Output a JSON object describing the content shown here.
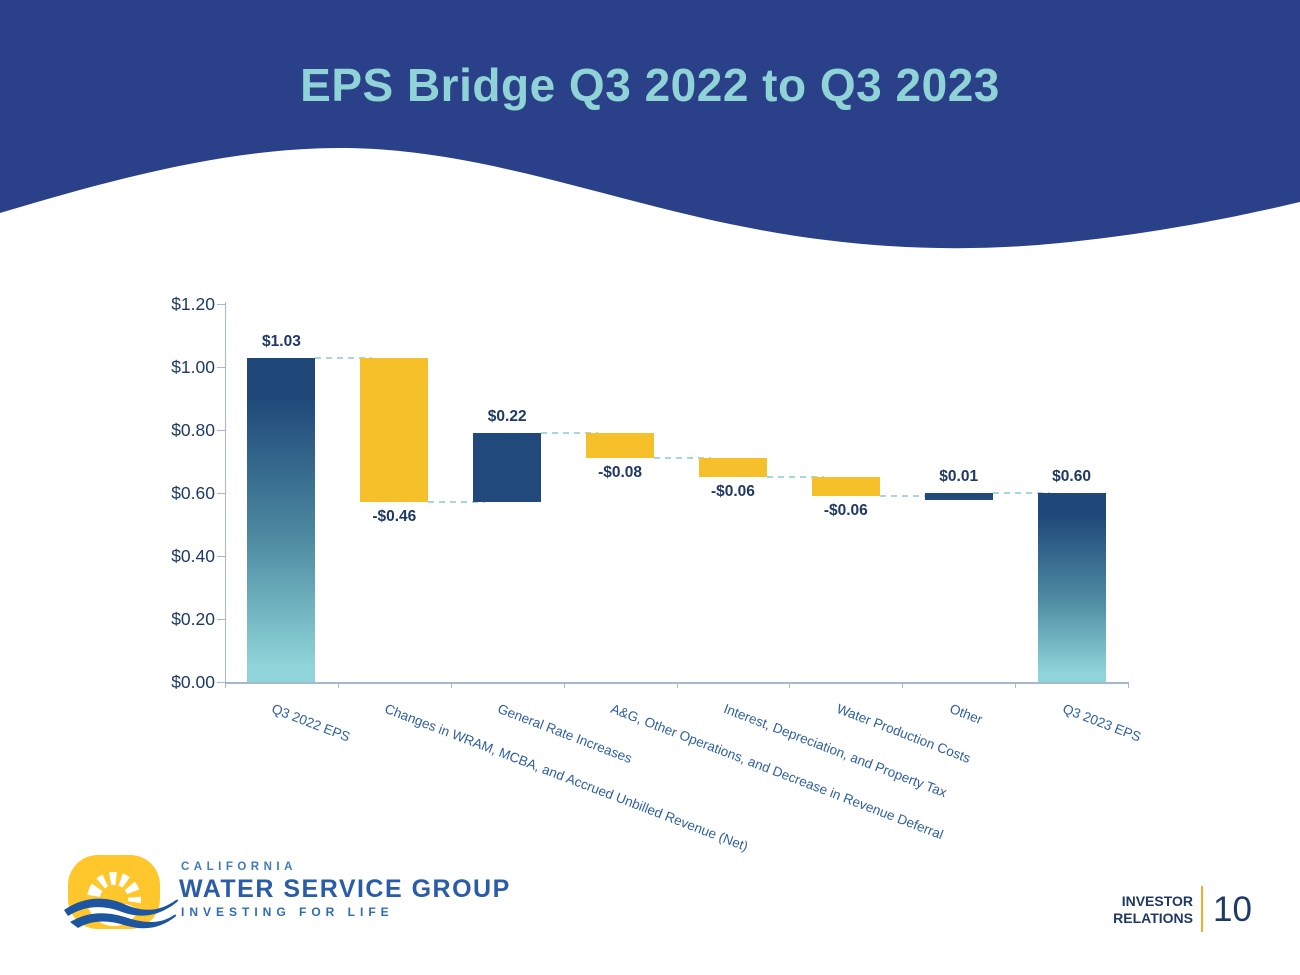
{
  "header": {
    "title": "EPS Bridge Q3 2022 to Q3 2023"
  },
  "chart_data": {
    "type": "bar",
    "subtype": "waterfall",
    "title": "EPS Bridge Q3 2022 to Q3 2023",
    "categories": [
      "Q3 2022 EPS",
      "Changes in WRAM, MCBA, and Accrued Unbilled Revenue (Net)",
      "General Rate Increases",
      "A&G, Other Operations, and Decrease in Revenue Deferral",
      "Interest, Depreciation, and Property Tax",
      "Water Production Costs",
      "Other",
      "Q3 2023 EPS"
    ],
    "values": [
      1.03,
      -0.46,
      0.22,
      -0.08,
      -0.06,
      -0.06,
      0.01,
      0.6
    ],
    "value_labels": [
      "$1.03",
      "-$0.46",
      "$0.22",
      "-$0.08",
      "-$0.06",
      "-$0.06",
      "$0.01",
      "$0.60"
    ],
    "bar_roles": [
      "total",
      "decrease",
      "increase",
      "decrease",
      "decrease",
      "decrease",
      "increase",
      "total"
    ],
    "cumulative_levels": [
      1.03,
      0.57,
      0.79,
      0.71,
      0.65,
      0.59,
      0.6,
      0.6
    ],
    "xlabel": "",
    "ylabel": "",
    "ylim": [
      0,
      1.2
    ],
    "grid": false,
    "legend": false,
    "y_axis_ticks": [
      {
        "label": "$0.00",
        "value": 0.0
      },
      {
        "label": "$0.20",
        "value": 0.2
      },
      {
        "label": "$0.40",
        "value": 0.4
      },
      {
        "label": "$0.60",
        "value": 0.6
      },
      {
        "label": "$0.80",
        "value": 0.8
      },
      {
        "label": "$1.00",
        "value": 1.0
      },
      {
        "label": "$1.20",
        "value": 1.2
      }
    ],
    "colors": {
      "total_bar_gradient_top": "#1F4879",
      "total_bar_gradient_mid": "#4C89A0",
      "total_bar_gradient_bottom": "#8ED4D8",
      "increase_bar": "#21497C",
      "decrease_bar": "#F5C02A",
      "connector": "#A5D8DE",
      "value_label": "#1F3864",
      "category_label": "#2E5F9E",
      "axis": "#A6B8CC",
      "axis_label": "#1E3A66"
    }
  },
  "footer": {
    "logo": {
      "line1": "CALIFORNIA",
      "line2": "WATER SERVICE GROUP",
      "line3": "INVESTING FOR LIFE"
    },
    "investor_relations": {
      "line1": "INVESTOR",
      "line2": "RELATIONS"
    },
    "page_number": "10"
  },
  "theme": {
    "header_bg": "#2A4189",
    "title_color": "#8FD3D7",
    "background": "#FFFFFF",
    "divider_gold": "#EFAF2C",
    "logo_sun_yellow": "#FFC72C",
    "logo_wave_blue": "#1D55A0"
  }
}
